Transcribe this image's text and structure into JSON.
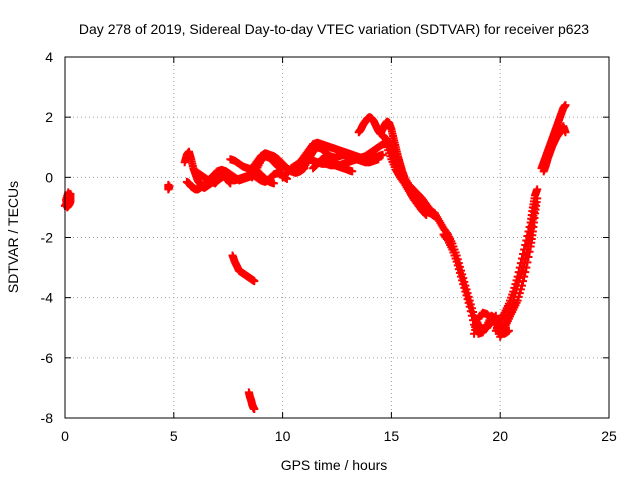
{
  "chart_data": {
    "type": "scatter",
    "title": "Day 278 of 2019, Sidereal Day-to-day VTEC variation (SDTVAR) for receiver p623",
    "xlabel": "GPS time / hours",
    "ylabel": "SDTVAR / TECUs",
    "xlim": [
      0,
      25
    ],
    "ylim": [
      -8,
      4
    ],
    "xticks": [
      0,
      5,
      10,
      15,
      20,
      25
    ],
    "yticks": [
      -8,
      -6,
      -4,
      -2,
      0,
      2,
      4
    ],
    "xtick_labels": [
      "0",
      "5",
      "10",
      "15",
      "20",
      "25"
    ],
    "ytick_labels": [
      "-8",
      "-6",
      "-4",
      "-2",
      "0",
      "2",
      "4"
    ],
    "grid": true,
    "marker": "plus",
    "color": "#ff0000",
    "segments": [
      [
        [
          0.0,
          -0.95
        ],
        [
          0.1,
          -0.85
        ],
        [
          0.15,
          -0.7
        ],
        [
          0.2,
          -0.6
        ],
        [
          0.25,
          -0.55
        ],
        [
          0.25,
          -0.8
        ],
        [
          0.2,
          -0.9
        ],
        [
          0.1,
          -1.0
        ],
        [
          0.05,
          -0.75
        ],
        [
          0.15,
          -0.5
        ]
      ],
      [
        [
          4.75,
          -0.25
        ],
        [
          4.75,
          -0.4
        ],
        [
          4.8,
          -0.3
        ]
      ],
      [
        [
          5.5,
          0.5
        ],
        [
          5.6,
          0.75
        ],
        [
          5.7,
          0.85
        ],
        [
          5.8,
          0.6
        ],
        [
          5.9,
          0.3
        ],
        [
          6.0,
          0.1
        ],
        [
          6.1,
          -0.1
        ],
        [
          6.2,
          -0.2
        ],
        [
          6.3,
          -0.3
        ],
        [
          6.4,
          -0.35
        ],
        [
          6.5,
          -0.3
        ],
        [
          6.6,
          -0.25
        ],
        [
          6.7,
          -0.2
        ],
        [
          6.8,
          -0.15
        ],
        [
          6.9,
          -0.2
        ],
        [
          7.0,
          -0.1
        ],
        [
          7.1,
          -0.05
        ],
        [
          7.2,
          0.0
        ],
        [
          7.3,
          0.05
        ],
        [
          7.4,
          -0.05
        ],
        [
          7.5,
          -0.1
        ],
        [
          7.6,
          -0.2
        ]
      ],
      [
        [
          5.6,
          -0.15
        ],
        [
          5.7,
          -0.2
        ],
        [
          5.8,
          -0.3
        ],
        [
          5.9,
          -0.35
        ],
        [
          6.0,
          -0.4
        ],
        [
          6.1,
          -0.4
        ],
        [
          6.2,
          -0.35
        ],
        [
          6.3,
          -0.3
        ],
        [
          6.4,
          -0.25
        ],
        [
          6.5,
          -0.2
        ],
        [
          6.6,
          -0.15
        ],
        [
          6.7,
          -0.1
        ],
        [
          6.8,
          -0.05
        ],
        [
          6.9,
          0.0
        ],
        [
          7.0,
          0.05
        ],
        [
          7.1,
          0.1
        ],
        [
          7.2,
          0.15
        ],
        [
          7.3,
          0.2
        ],
        [
          7.4,
          0.15
        ],
        [
          7.5,
          0.1
        ]
      ],
      [
        [
          6.0,
          0.2
        ],
        [
          6.2,
          0.1
        ],
        [
          6.4,
          0.0
        ],
        [
          6.6,
          -0.1
        ],
        [
          6.8,
          0.05
        ],
        [
          7.0,
          0.2
        ],
        [
          7.2,
          0.25
        ],
        [
          7.4,
          0.2
        ],
        [
          7.6,
          0.1
        ],
        [
          7.8,
          0.0
        ],
        [
          8.0,
          -0.1
        ],
        [
          8.2,
          -0.05
        ],
        [
          8.4,
          0.0
        ],
        [
          8.6,
          0.05
        ]
      ],
      [
        [
          7.6,
          0.6
        ],
        [
          7.8,
          0.55
        ],
        [
          8.0,
          0.45
        ],
        [
          8.2,
          0.35
        ],
        [
          8.4,
          0.3
        ],
        [
          8.6,
          0.25
        ],
        [
          8.8,
          0.2
        ],
        [
          9.0,
          0.1
        ],
        [
          9.2,
          -0.05
        ],
        [
          9.4,
          -0.15
        ],
        [
          9.6,
          -0.2
        ]
      ],
      [
        [
          7.8,
          -0.1
        ],
        [
          8.0,
          -0.05
        ],
        [
          8.2,
          0.0
        ],
        [
          8.4,
          0.05
        ],
        [
          8.6,
          0.1
        ],
        [
          8.8,
          0.0
        ],
        [
          9.0,
          -0.1
        ],
        [
          9.2,
          -0.15
        ],
        [
          9.4,
          -0.05
        ],
        [
          9.6,
          0.1
        ],
        [
          9.8,
          0.15
        ],
        [
          10.0,
          0.05
        ],
        [
          10.2,
          -0.05
        ]
      ],
      [
        [
          8.6,
          0.3
        ],
        [
          8.8,
          0.5
        ],
        [
          9.0,
          0.7
        ],
        [
          9.2,
          0.8
        ],
        [
          9.4,
          0.75
        ],
        [
          9.6,
          0.7
        ],
        [
          9.8,
          0.6
        ],
        [
          10.0,
          0.45
        ],
        [
          10.2,
          0.3
        ],
        [
          10.4,
          0.2
        ],
        [
          10.6,
          0.15
        ],
        [
          10.8,
          0.2
        ],
        [
          11.0,
          0.3
        ]
      ],
      [
        [
          8.6,
          0.0
        ],
        [
          8.8,
          0.25
        ],
        [
          9.0,
          0.55
        ],
        [
          9.2,
          0.7
        ],
        [
          9.4,
          0.65
        ],
        [
          9.6,
          0.5
        ],
        [
          9.8,
          0.35
        ],
        [
          10.0,
          0.25
        ]
      ],
      [
        [
          7.7,
          -2.6
        ],
        [
          7.8,
          -2.8
        ],
        [
          7.9,
          -2.95
        ],
        [
          8.0,
          -3.1
        ],
        [
          8.1,
          -3.15
        ],
        [
          8.2,
          -3.2
        ],
        [
          8.3,
          -3.25
        ],
        [
          8.4,
          -3.3
        ],
        [
          8.5,
          -3.35
        ],
        [
          8.6,
          -3.4
        ],
        [
          8.7,
          -3.45
        ]
      ],
      [
        [
          8.45,
          -7.15
        ],
        [
          8.5,
          -7.3
        ],
        [
          8.55,
          -7.4
        ],
        [
          8.6,
          -7.55
        ],
        [
          8.65,
          -7.65
        ],
        [
          8.7,
          -7.7
        ]
      ],
      [
        [
          10.0,
          0.0
        ],
        [
          10.2,
          0.15
        ],
        [
          10.4,
          0.3
        ],
        [
          10.6,
          0.4
        ],
        [
          10.8,
          0.5
        ],
        [
          11.0,
          0.55
        ],
        [
          11.2,
          0.6
        ],
        [
          11.4,
          0.55
        ],
        [
          11.6,
          0.5
        ],
        [
          11.8,
          0.45
        ],
        [
          12.0,
          0.45
        ],
        [
          12.2,
          0.4
        ],
        [
          12.4,
          0.4
        ],
        [
          12.6,
          0.35
        ],
        [
          12.8,
          0.3
        ],
        [
          13.0,
          0.25
        ],
        [
          13.2,
          0.2
        ]
      ],
      [
        [
          10.6,
          0.3
        ],
        [
          10.8,
          0.5
        ],
        [
          11.0,
          0.7
        ],
        [
          11.2,
          0.9
        ],
        [
          11.4,
          1.1
        ],
        [
          11.6,
          1.15
        ],
        [
          11.8,
          1.1
        ],
        [
          12.0,
          1.05
        ],
        [
          12.2,
          1.0
        ],
        [
          12.4,
          0.95
        ],
        [
          12.6,
          0.9
        ],
        [
          12.8,
          0.85
        ],
        [
          13.0,
          0.8
        ],
        [
          13.2,
          0.75
        ],
        [
          13.4,
          0.7
        ],
        [
          13.6,
          0.65
        ],
        [
          13.8,
          0.6
        ],
        [
          14.0,
          0.6
        ],
        [
          14.2,
          0.65
        ],
        [
          14.4,
          0.7
        ],
        [
          14.6,
          0.75
        ]
      ],
      [
        [
          11.0,
          0.35
        ],
        [
          11.2,
          0.6
        ],
        [
          11.4,
          0.85
        ],
        [
          11.6,
          1.0
        ],
        [
          11.8,
          0.95
        ],
        [
          12.0,
          0.8
        ],
        [
          12.2,
          0.7
        ],
        [
          12.4,
          0.65
        ],
        [
          12.6,
          0.7
        ],
        [
          12.8,
          0.75
        ],
        [
          13.0,
          0.7
        ],
        [
          13.2,
          0.65
        ],
        [
          13.4,
          0.6
        ],
        [
          13.6,
          0.55
        ],
        [
          13.8,
          0.5
        ],
        [
          14.0,
          0.5
        ],
        [
          14.2,
          0.55
        ],
        [
          14.4,
          0.6
        ]
      ],
      [
        [
          11.4,
          0.3
        ],
        [
          11.6,
          0.45
        ],
        [
          11.8,
          0.6
        ],
        [
          12.0,
          0.65
        ],
        [
          12.2,
          0.55
        ],
        [
          12.4,
          0.45
        ],
        [
          12.6,
          0.4
        ],
        [
          12.8,
          0.45
        ],
        [
          13.0,
          0.5
        ],
        [
          13.2,
          0.55
        ],
        [
          13.4,
          0.6
        ],
        [
          13.6,
          0.65
        ],
        [
          13.8,
          0.7
        ],
        [
          14.0,
          0.8
        ],
        [
          14.2,
          0.9
        ],
        [
          14.4,
          1.0
        ],
        [
          14.6,
          1.1
        ],
        [
          14.8,
          1.2
        ]
      ],
      [
        [
          13.5,
          1.5
        ],
        [
          13.6,
          1.6
        ],
        [
          13.7,
          1.75
        ],
        [
          13.8,
          1.85
        ],
        [
          13.9,
          1.95
        ],
        [
          14.0,
          2.0
        ],
        [
          14.1,
          1.95
        ],
        [
          14.2,
          1.85
        ],
        [
          14.3,
          1.7
        ],
        [
          14.4,
          1.55
        ],
        [
          14.5,
          1.45
        ],
        [
          14.6,
          1.6
        ],
        [
          14.7,
          1.75
        ],
        [
          14.8,
          1.85
        ],
        [
          14.9,
          1.8
        ],
        [
          15.0,
          1.6
        ],
        [
          15.1,
          1.3
        ],
        [
          15.2,
          1.0
        ],
        [
          15.3,
          0.7
        ],
        [
          15.4,
          0.45
        ],
        [
          15.5,
          0.2
        ],
        [
          15.6,
          0.0
        ],
        [
          15.8,
          -0.25
        ],
        [
          16.0,
          -0.4
        ],
        [
          16.2,
          -0.55
        ],
        [
          16.4,
          -0.7
        ],
        [
          16.6,
          -0.9
        ],
        [
          16.8,
          -1.1
        ]
      ],
      [
        [
          14.6,
          1.4
        ],
        [
          14.7,
          1.3
        ],
        [
          14.8,
          1.25
        ],
        [
          14.9,
          1.15
        ],
        [
          15.0,
          0.9
        ],
        [
          15.1,
          0.7
        ],
        [
          15.2,
          0.5
        ],
        [
          15.3,
          0.35
        ],
        [
          15.4,
          0.2
        ],
        [
          15.5,
          0.05
        ],
        [
          15.6,
          -0.15
        ],
        [
          15.8,
          -0.35
        ],
        [
          16.0,
          -0.55
        ],
        [
          16.2,
          -0.75
        ],
        [
          16.4,
          -0.95
        ],
        [
          16.6,
          -1.15
        ],
        [
          16.8,
          -1.2
        ],
        [
          17.0,
          -1.3
        ]
      ],
      [
        [
          14.8,
          1.0
        ],
        [
          15.0,
          0.6
        ],
        [
          15.2,
          0.25
        ],
        [
          15.4,
          0.0
        ],
        [
          15.6,
          -0.2
        ],
        [
          15.8,
          -0.45
        ],
        [
          16.0,
          -0.7
        ],
        [
          16.2,
          -0.9
        ],
        [
          16.4,
          -1.1
        ],
        [
          16.6,
          -1.25
        ]
      ],
      [
        [
          16.8,
          -1.1
        ],
        [
          17.0,
          -1.2
        ],
        [
          17.2,
          -1.45
        ],
        [
          17.4,
          -1.7
        ],
        [
          17.6,
          -1.9
        ],
        [
          17.8,
          -2.2
        ],
        [
          18.0,
          -2.6
        ],
        [
          18.2,
          -3.1
        ],
        [
          18.4,
          -3.6
        ],
        [
          18.6,
          -4.1
        ],
        [
          18.8,
          -4.6
        ],
        [
          19.0,
          -4.9
        ],
        [
          19.2,
          -5.05
        ],
        [
          19.4,
          -5.0
        ],
        [
          19.6,
          -4.8
        ],
        [
          19.8,
          -4.6
        ]
      ],
      [
        [
          17.4,
          -1.9
        ],
        [
          17.6,
          -2.1
        ],
        [
          17.8,
          -2.4
        ],
        [
          18.0,
          -2.8
        ],
        [
          18.2,
          -3.3
        ],
        [
          18.4,
          -3.8
        ],
        [
          18.6,
          -4.3
        ],
        [
          18.8,
          -4.9
        ],
        [
          19.0,
          -5.2
        ],
        [
          19.2,
          -5.15
        ],
        [
          19.4,
          -4.9
        ],
        [
          19.6,
          -4.6
        ],
        [
          19.8,
          -4.7
        ],
        [
          20.0,
          -5.0
        ],
        [
          20.2,
          -5.2
        ],
        [
          20.4,
          -5.1
        ]
      ],
      [
        [
          18.8,
          -5.2
        ],
        [
          19.0,
          -4.7
        ],
        [
          19.2,
          -4.5
        ],
        [
          19.4,
          -4.55
        ],
        [
          19.6,
          -4.7
        ],
        [
          19.8,
          -4.9
        ],
        [
          20.0,
          -5.3
        ],
        [
          20.2,
          -5.0
        ],
        [
          20.4,
          -4.7
        ],
        [
          20.6,
          -4.4
        ],
        [
          20.8,
          -4.1
        ],
        [
          21.0,
          -3.6
        ],
        [
          21.2,
          -3.0
        ],
        [
          21.4,
          -2.3
        ],
        [
          21.5,
          -1.8
        ],
        [
          21.6,
          -1.2
        ],
        [
          21.7,
          -0.7
        ]
      ],
      [
        [
          19.8,
          -5.1
        ],
        [
          20.0,
          -4.8
        ],
        [
          20.2,
          -4.5
        ],
        [
          20.4,
          -4.2
        ],
        [
          20.6,
          -3.8
        ],
        [
          20.8,
          -3.3
        ],
        [
          21.0,
          -2.7
        ],
        [
          21.2,
          -2.1
        ],
        [
          21.4,
          -1.5
        ],
        [
          21.5,
          -1.0
        ],
        [
          21.6,
          -0.6
        ],
        [
          21.7,
          -0.4
        ]
      ],
      [
        [
          20.2,
          -5.0
        ],
        [
          20.4,
          -4.6
        ],
        [
          20.6,
          -4.1
        ],
        [
          20.8,
          -3.6
        ],
        [
          21.0,
          -3.1
        ],
        [
          21.2,
          -2.6
        ],
        [
          21.3,
          -2.2
        ],
        [
          21.4,
          -1.8
        ],
        [
          21.5,
          -1.4
        ],
        [
          21.6,
          -0.9
        ]
      ],
      [
        [
          21.9,
          0.3
        ],
        [
          22.0,
          0.5
        ],
        [
          22.1,
          0.7
        ],
        [
          22.2,
          0.9
        ],
        [
          22.3,
          1.1
        ],
        [
          22.4,
          1.3
        ],
        [
          22.5,
          1.5
        ],
        [
          22.6,
          1.7
        ],
        [
          22.7,
          1.9
        ],
        [
          22.8,
          2.1
        ],
        [
          22.9,
          2.3
        ],
        [
          23.0,
          2.4
        ]
      ],
      [
        [
          22.0,
          0.2
        ],
        [
          22.1,
          0.4
        ],
        [
          22.2,
          0.65
        ],
        [
          22.3,
          0.85
        ],
        [
          22.4,
          1.05
        ],
        [
          22.5,
          1.2
        ],
        [
          22.6,
          1.35
        ],
        [
          22.7,
          1.45
        ],
        [
          22.8,
          1.55
        ],
        [
          22.9,
          1.7
        ],
        [
          23.0,
          1.5
        ]
      ]
    ]
  }
}
